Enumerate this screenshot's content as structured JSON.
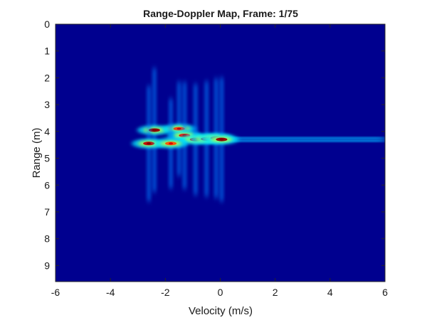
{
  "chart_data": {
    "type": "heatmap",
    "title": "Range-Doppler Map, Frame: 1/75",
    "xlabel": "Velocity (m/s)",
    "ylabel": "Range (m)",
    "xlim": [
      -6,
      6
    ],
    "ylim": [
      0,
      9.6
    ],
    "y_direction": "reverse",
    "xticks": [
      -6,
      -4,
      -2,
      0,
      2,
      4,
      6
    ],
    "yticks": [
      0,
      1,
      2,
      3,
      4,
      5,
      6,
      7,
      8,
      9
    ],
    "grid": false,
    "colormap": "jet",
    "background_color": "#00008f",
    "horizontal_streak_ranges": [
      4.25,
      4.35
    ],
    "returns": [
      {
        "velocity": -2.4,
        "range": 3.95,
        "intensity": 0.95
      },
      {
        "velocity": -2.6,
        "range": 4.45,
        "intensity": 0.85
      },
      {
        "velocity": -1.5,
        "range": 3.9,
        "intensity": 0.6
      },
      {
        "velocity": -1.3,
        "range": 4.15,
        "intensity": 0.75
      },
      {
        "velocity": -0.9,
        "range": 4.3,
        "intensity": 0.8
      },
      {
        "velocity": -0.5,
        "range": 4.28,
        "intensity": 0.85
      },
      {
        "velocity": -0.15,
        "range": 4.25,
        "intensity": 0.9
      },
      {
        "velocity": 0.05,
        "range": 4.3,
        "intensity": 0.95
      },
      {
        "velocity": -1.8,
        "range": 4.45,
        "intensity": 0.55
      }
    ]
  }
}
